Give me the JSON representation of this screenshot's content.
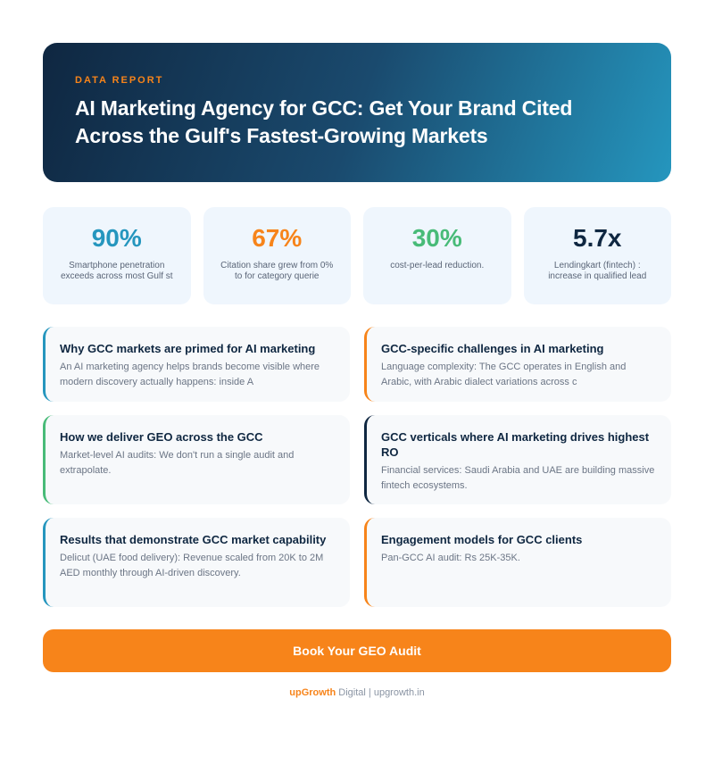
{
  "hero": {
    "eyebrow": "DATA REPORT",
    "title": "AI Marketing Agency for GCC: Get Your Brand Cited Across the Gulf's Fastest-Growing Markets"
  },
  "stats": [
    {
      "value": "90%",
      "label": "Smartphone penetration exceeds across most Gulf st",
      "color": "#2596be"
    },
    {
      "value": "67%",
      "label": "Citation share grew from 0% to for category querie",
      "color": "#f7841a"
    },
    {
      "value": "30%",
      "label": "cost-per-lead reduction.",
      "color": "#48bb78"
    },
    {
      "value": "5.7x",
      "label": "Lendingkart (fintech) : increase in qualified lead",
      "color": "#0f2741"
    }
  ],
  "sections": [
    {
      "title": "Why GCC markets are primed for AI marketing",
      "text": "An AI marketing agency helps brands become visible where modern discovery actually happens: inside A",
      "accent": "#2596be"
    },
    {
      "title": "GCC-specific challenges in AI marketing",
      "text": "Language complexity: The GCC operates in English and Arabic, with Arabic dialect variations across c",
      "accent": "#f7841a"
    },
    {
      "title": "How we deliver GEO across the GCC",
      "text": "Market-level AI audits: We don't run a single audit and extrapolate.",
      "accent": "#48bb78"
    },
    {
      "title": "GCC verticals where AI marketing drives highest RO",
      "text": "Financial services: Saudi Arabia and UAE are building massive fintech ecosystems.",
      "accent": "#0f2741"
    },
    {
      "title": "Results that demonstrate GCC market capability",
      "text": "Delicut (UAE food delivery): Revenue scaled from 20K to 2M AED monthly through AI-driven discovery.",
      "accent": "#2596be"
    },
    {
      "title": "Engagement models for GCC clients",
      "text": "Pan-GCC AI audit: Rs 25K-35K.",
      "accent": "#f7841a"
    }
  ],
  "cta": {
    "label": "Book Your GEO Audit"
  },
  "footer": {
    "brand": "upGrowth",
    "brand_suffix": " Digital",
    "separator": " | ",
    "site": "upgrowth.in"
  }
}
